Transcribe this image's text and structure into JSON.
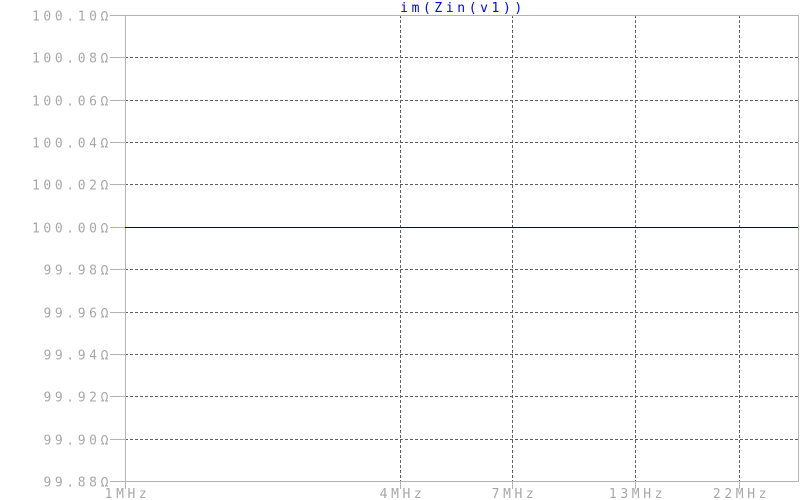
{
  "chart_data": {
    "type": "line",
    "title": "im(Zin(v1))",
    "xlabel": "",
    "ylabel": "",
    "x_scale": "log",
    "xlim": [
      1000000,
      29600000
    ],
    "ylim": [
      99.88,
      100.1
    ],
    "x_ticks": [
      {
        "value": 1000000,
        "label": "1MHz"
      },
      {
        "value": 4000000,
        "label": "4MHz"
      },
      {
        "value": 7000000,
        "label": "7MHz"
      },
      {
        "value": 13000000,
        "label": "13MHz"
      },
      {
        "value": 22000000,
        "label": "22MHz"
      }
    ],
    "y_ticks": [
      {
        "value": 100.1,
        "label": "100.10Ω"
      },
      {
        "value": 100.08,
        "label": "100.08Ω"
      },
      {
        "value": 100.06,
        "label": "100.06Ω"
      },
      {
        "value": 100.04,
        "label": "100.04Ω"
      },
      {
        "value": 100.02,
        "label": "100.02Ω"
      },
      {
        "value": 100.0,
        "label": "100.00Ω"
      },
      {
        "value": 99.98,
        "label": "99.98Ω"
      },
      {
        "value": 99.96,
        "label": "99.96Ω"
      },
      {
        "value": 99.94,
        "label": "99.94Ω"
      },
      {
        "value": 99.92,
        "label": "99.92Ω"
      },
      {
        "value": 99.9,
        "label": "99.90Ω"
      },
      {
        "value": 99.88,
        "label": "99.88Ω"
      }
    ],
    "grid": true,
    "series": [
      {
        "x": [
          1000000,
          29600000
        ],
        "y": [
          100.0,
          100.0
        ],
        "color": "#000080"
      }
    ],
    "colors": {
      "axis": "#b4b4b4",
      "grid": "#606060",
      "title": "#0000ff",
      "ticklabel": "#a8a8a8"
    }
  }
}
